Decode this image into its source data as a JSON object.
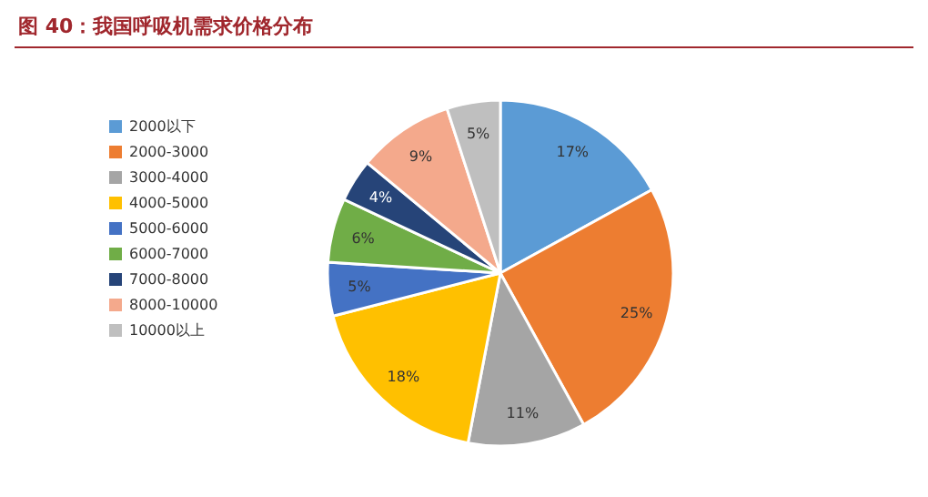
{
  "chart_data": {
    "type": "pie",
    "title": "图 40：我国呼吸机需求价格分布",
    "categories": [
      "2000以下",
      "2000-3000",
      "3000-4000",
      "4000-5000",
      "5000-6000",
      "6000-7000",
      "7000-8000",
      "8000-10000",
      "10000以上"
    ],
    "values": [
      17,
      25,
      11,
      18,
      5,
      6,
      4,
      9,
      5
    ],
    "value_labels": [
      "17%",
      "25%",
      "11%",
      "18%",
      "5%",
      "6%",
      "4%",
      "9%",
      "5%"
    ],
    "colors": [
      "#5b9bd5",
      "#ed7d31",
      "#a5a5a5",
      "#ffc000",
      "#4472c4",
      "#70ad47",
      "#264478",
      "#f4a98c",
      "#bfbfbf"
    ],
    "legend": "left"
  }
}
